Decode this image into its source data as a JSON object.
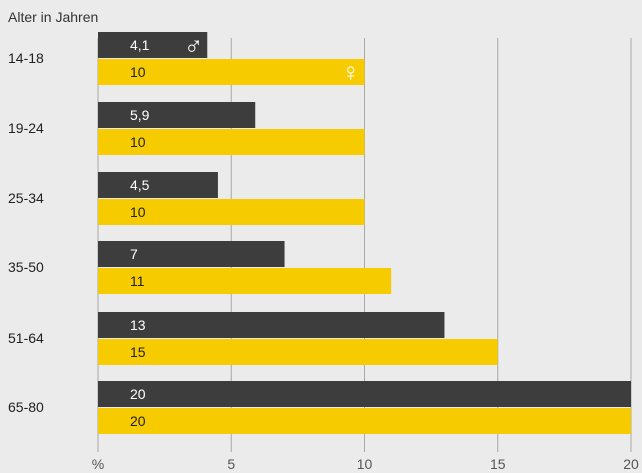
{
  "chart_data": {
    "type": "bar",
    "orientation": "horizontal",
    "title": "Alter in Jahren",
    "categories": [
      "14-18",
      "19-24",
      "25-34",
      "35-50",
      "51-64",
      "65-80"
    ],
    "series": [
      {
        "symbol": "♂",
        "color": "#3d3d3d",
        "label_color": "#ffffff",
        "values": [
          4.1,
          5.9,
          4.5,
          7,
          13,
          20
        ],
        "labels": [
          "4,1",
          "5,9",
          "4,5",
          "7",
          "13",
          "20"
        ]
      },
      {
        "symbol": "♀",
        "color": "#f6cb00",
        "label_color": "#222222",
        "values": [
          10,
          10,
          10,
          11,
          15,
          20
        ],
        "labels": [
          "10",
          "10",
          "10",
          "11",
          "15",
          "20"
        ]
      }
    ],
    "xlim": [
      0,
      20
    ],
    "x_ticks": [
      {
        "value": 0,
        "label": "%"
      },
      {
        "value": 5,
        "label": "5"
      },
      {
        "value": 10,
        "label": "10"
      },
      {
        "value": 15,
        "label": "15"
      },
      {
        "value": 20,
        "label": "20"
      }
    ],
    "grid": "vertical",
    "legend": "symbols inside first category bars"
  }
}
